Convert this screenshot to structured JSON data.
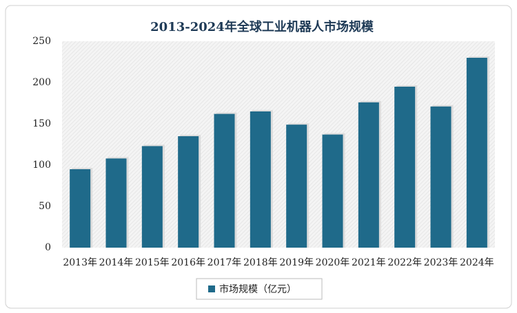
{
  "chart_data": {
    "type": "bar",
    "title": "2013-2024年全球工业机器人市场规模",
    "categories": [
      "2013年",
      "2014年",
      "2015年",
      "2016年",
      "2017年",
      "2018年",
      "2019年",
      "2020年",
      "2021年",
      "2022年",
      "2023年",
      "2024年"
    ],
    "series": [
      {
        "name": "市场规模（亿元）",
        "color": "#1f6a8a",
        "values": [
          95,
          108,
          123,
          135,
          162,
          165,
          149,
          137,
          176,
          195,
          171,
          230
        ]
      }
    ],
    "ylim": [
      0,
      250
    ],
    "yticks": [
      0,
      50,
      100,
      150,
      200,
      250
    ],
    "grid": false
  }
}
